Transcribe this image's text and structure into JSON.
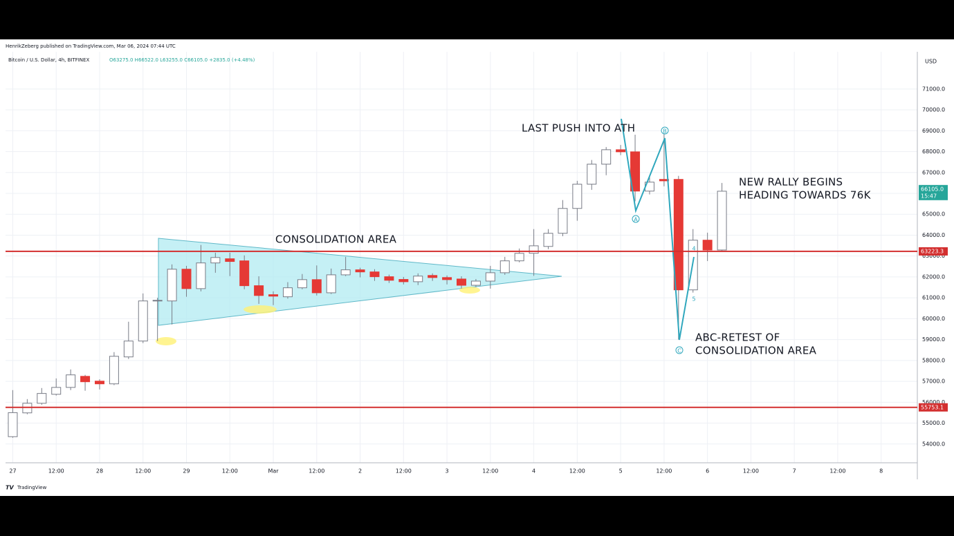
{
  "header": {
    "published": "HenrikZeberg published on TradingView.com, Mar 06, 2024 07:44 UTC",
    "symbol": "Bitcoin / U.S. Dollar, 4h, BITFINEX",
    "ohlc": "O63275.0 H66522.0 L63255.0 C66105.0 +2835.0 (+4.48%)",
    "currency": "USD",
    "brand": "TradingView"
  },
  "chart_data": {
    "type": "candlestick",
    "x": [
      0,
      1,
      2,
      3,
      4,
      5,
      6,
      7,
      8,
      9,
      10,
      11,
      12,
      13,
      14,
      15,
      16,
      17,
      18,
      19,
      20,
      21,
      22,
      23,
      24,
      25,
      26,
      27,
      28,
      29,
      30,
      31,
      32,
      33,
      34,
      35,
      36,
      37,
      38,
      39,
      40,
      41,
      42,
      43,
      44,
      45,
      46,
      47,
      48,
      49
    ],
    "open": [
      54350,
      55490,
      55950,
      56380,
      56710,
      57240,
      57010,
      56880,
      58170,
      58930,
      60850,
      60850,
      62370,
      61440,
      62670,
      62870,
      62770,
      61580,
      61150,
      61050,
      61480,
      61870,
      61240,
      62100,
      62340,
      62240,
      62010,
      61880,
      61770,
      62070,
      61970,
      61900,
      61600,
      61800,
      62200,
      62770,
      63130,
      63460,
      64090,
      65280,
      66440,
      67400,
      68090,
      67990,
      66110,
      66670,
      66670,
      61380,
      63760,
      63290
    ],
    "close": [
      55500,
      55950,
      56420,
      56710,
      57310,
      56980,
      56880,
      58200,
      58930,
      60850,
      60880,
      62370,
      61440,
      62670,
      62930,
      62740,
      61580,
      61110,
      61080,
      61480,
      61870,
      61240,
      62100,
      62340,
      62240,
      62010,
      61840,
      61770,
      62040,
      61970,
      61870,
      61600,
      61800,
      62200,
      62770,
      63130,
      63490,
      64090,
      65280,
      66440,
      67400,
      68090,
      67990,
      66110,
      66540,
      66600,
      61380,
      63760,
      63290,
      66105
    ],
    "high": [
      56580,
      56150,
      56680,
      57140,
      57570,
      57310,
      57100,
      58400,
      59855,
      61210,
      61000,
      62600,
      62530,
      63530,
      63160,
      63160,
      63030,
      62030,
      61310,
      61750,
      62140,
      62550,
      62400,
      62960,
      62440,
      62370,
      62110,
      62000,
      62170,
      62170,
      62070,
      62030,
      61900,
      62530,
      62960,
      63360,
      64290,
      64290,
      65680,
      66600,
      67600,
      68220,
      68320,
      68810,
      66840,
      68840,
      66840,
      64290,
      64120,
      66500
    ],
    "low": [
      54300,
      55425,
      55880,
      56320,
      56580,
      56550,
      56610,
      56820,
      58070,
      58830,
      58930,
      59720,
      61050,
      61310,
      62200,
      62040,
      61410,
      60710,
      60650,
      60960,
      61410,
      61110,
      61180,
      62040,
      61980,
      61810,
      61710,
      61640,
      61610,
      61810,
      61640,
      61440,
      61510,
      61440,
      62100,
      62700,
      62050,
      63330,
      63950,
      64690,
      66170,
      66870,
      67830,
      65620,
      65950,
      66340,
      59000,
      61250,
      62760,
      63220
    ],
    "up_color": "#ffffff",
    "up_border": "#787b86",
    "down_color": "#e53935",
    "wick_color": "#787b86",
    "xlim": [
      -0.5,
      62.5
    ],
    "xticks": [
      {
        "value": 0,
        "label": "27"
      },
      {
        "value": 3,
        "label": "12:00"
      },
      {
        "value": 6,
        "label": "28"
      },
      {
        "value": 9,
        "label": "12:00"
      },
      {
        "value": 12,
        "label": "29"
      },
      {
        "value": 15,
        "label": "12:00"
      },
      {
        "value": 18,
        "label": "Mar"
      },
      {
        "value": 21,
        "label": "12:00"
      },
      {
        "value": 24,
        "label": "2"
      },
      {
        "value": 27,
        "label": "12:00"
      },
      {
        "value": 30,
        "label": "3"
      },
      {
        "value": 33,
        "label": "12:00"
      },
      {
        "value": 36,
        "label": "4"
      },
      {
        "value": 39,
        "label": "12:00"
      },
      {
        "value": 42,
        "label": "5"
      },
      {
        "value": 45,
        "label": "12:00"
      },
      {
        "value": 48,
        "label": "6"
      },
      {
        "value": 51,
        "label": "12:00"
      },
      {
        "value": 54,
        "label": "7"
      },
      {
        "value": 57,
        "label": "12:00"
      },
      {
        "value": 60,
        "label": "8"
      }
    ],
    "ylim": [
      53100,
      72780
    ],
    "yticks": [
      {
        "value": 54000,
        "label": "54000.0"
      },
      {
        "value": 55000,
        "label": "55000.0"
      },
      {
        "value": 56000,
        "label": "56000.0"
      },
      {
        "value": 57000,
        "label": "57000.0"
      },
      {
        "value": 58000,
        "label": "58000.0"
      },
      {
        "value": 59000,
        "label": "59000.0"
      },
      {
        "value": 60000,
        "label": "60000.0"
      },
      {
        "value": 61000,
        "label": "61000.0"
      },
      {
        "value": 62000,
        "label": "62000.0"
      },
      {
        "value": 63000,
        "label": "63000.0"
      },
      {
        "value": 64000,
        "label": "64000.0"
      },
      {
        "value": 65000,
        "label": "65000.0"
      },
      {
        "value": 66000,
        "label": "66000.0"
      },
      {
        "value": 67000,
        "label": "67000.0"
      },
      {
        "value": 68000,
        "label": "68000.0"
      },
      {
        "value": 69000,
        "label": "69000.0"
      },
      {
        "value": 70000,
        "label": "70000.0"
      },
      {
        "value": 71000,
        "label": "71000.0"
      }
    ],
    "grid": true,
    "levels": [
      63223.3,
      55753.1
    ],
    "level_color": "#d32f2f",
    "last_price": {
      "value": 66105,
      "label": "66105.0"
    },
    "countdown": "15:47",
    "last_color": "#26a69a",
    "annotations": {
      "ath": "LAST PUSH INTO ATH",
      "consolidation": "CONSOLIDATION AREA",
      "rally": [
        "NEW RALLY BEGINS",
        "HEADING TOWARDS 76K"
      ],
      "retest": [
        "ABC-RETEST OF",
        "CONSOLIDATION AREA"
      ],
      "waves": [
        "A",
        "B",
        "C",
        "4",
        "5"
      ]
    }
  }
}
